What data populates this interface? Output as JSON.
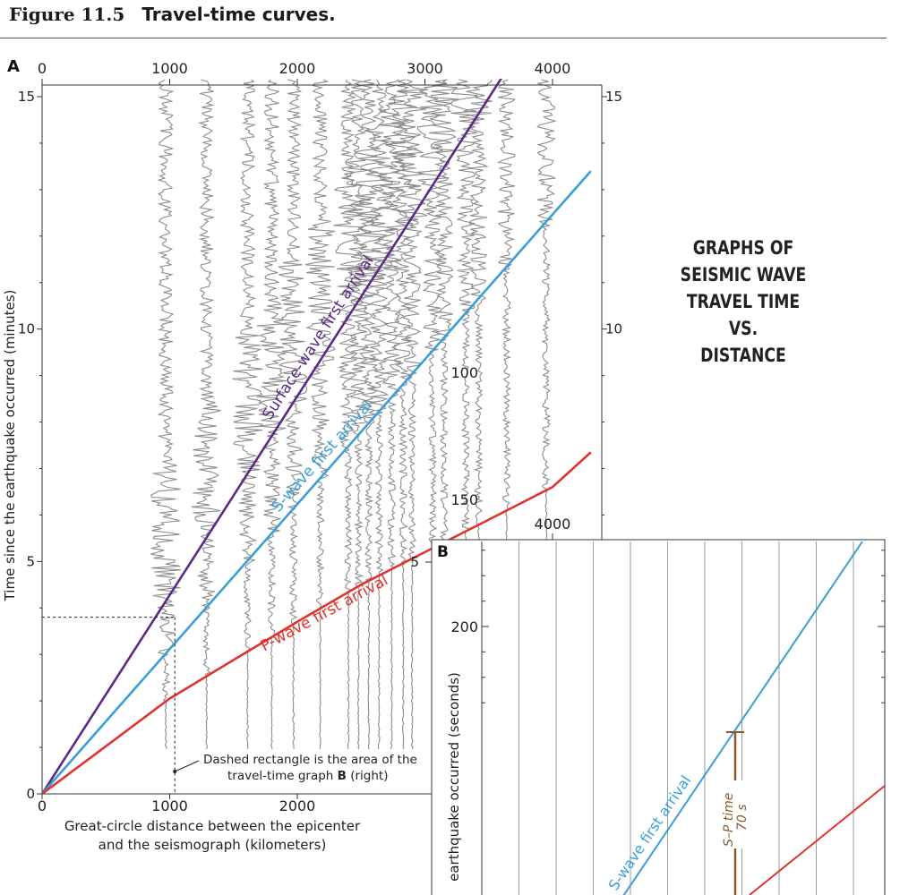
{
  "figure": {
    "number": "Figure 11.5",
    "caption": "Travel-time curves.",
    "main_title": [
      "GRAPHS OF",
      "SEISMIC WAVE",
      "TRAVEL TIME",
      "VS.",
      "DISTANCE"
    ]
  },
  "chart_data": [
    {
      "panel": "A",
      "type": "line",
      "xlabel": "Great-circle distance between the epicenter\nand the seismograph (kilometers)",
      "ylabel": "Time since the earthquake occurred (minutes)",
      "x_ticks_top": [
        0,
        1000,
        2000,
        3000,
        4000
      ],
      "x_ticks_bottom": [
        0,
        1000,
        2000
      ],
      "y_ticks_left": [
        0,
        5,
        10,
        15
      ],
      "y_ticks_right": [
        10,
        15
      ],
      "xlim": [
        0,
        4300
      ],
      "ylim": [
        0,
        15
      ],
      "series": [
        {
          "name": "Surface-wave first arrival",
          "color": "#5b2a86",
          "x": [
            0,
            3600
          ],
          "y": [
            0,
            15.4
          ]
        },
        {
          "name": "S-wave first arrival",
          "color": "#3a9fd6",
          "x": [
            0,
            4300
          ],
          "y": [
            0,
            13.4
          ]
        },
        {
          "name": "P-wave first arrival",
          "color": "#e0332d",
          "x": [
            0,
            1000,
            1500,
            2000,
            2500,
            3000,
            3500,
            4000,
            4300
          ],
          "y": [
            0,
            2.05,
            2.88,
            3.7,
            4.5,
            5.2,
            5.9,
            6.6,
            7.35
          ]
        }
      ],
      "seismogram_stations_km": [
        970,
        1290,
        1610,
        1800,
        1970,
        2180,
        2400,
        2480,
        2560,
        2640,
        2740,
        2830,
        2900,
        3060,
        3150,
        3320,
        3420,
        3640,
        3950
      ],
      "annotation": {
        "line1": "Dashed rectangle is the area of the",
        "line2_a": "travel-time graph ",
        "line2_b": "B",
        "line2_c": " (right)",
        "rect_x_km": 1040,
        "rect_y_min": 3.8
      },
      "inset_labels": {
        "x": "4000",
        "y": "5"
      }
    },
    {
      "panel": "B",
      "type": "line",
      "ylabel": "earthquake occurred (seconds)",
      "y_ticks": [
        100,
        150,
        200
      ],
      "series": [
        {
          "name": "S-wave first arrival",
          "color": "#3a9fd6"
        },
        {
          "name": "P-wave first arrival",
          "color": "#e0332d"
        }
      ],
      "sp_label_line1": "S–P time",
      "sp_label_line2": "70 s",
      "sp_color": "#8a5a2b"
    }
  ]
}
